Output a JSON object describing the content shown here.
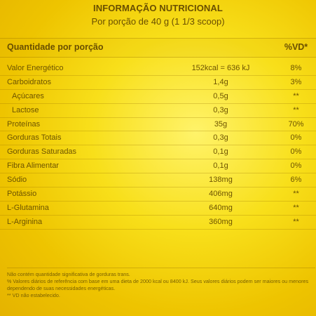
{
  "header": {
    "title": "INFORMAÇÃO NUTRICIONAL",
    "subtitle": "Por porção de 40 g (1 1/3 scoop)"
  },
  "table": {
    "column_label": "Quantidade por porção",
    "vd_label": "%VD*",
    "rows": [
      {
        "name": "Valor Energético",
        "amount": "152kcal = 636 kJ",
        "vd": "8%",
        "indent": false
      },
      {
        "name": "Carboidratos",
        "amount": "1,4g",
        "vd": "3%",
        "indent": false
      },
      {
        "name": "Açúcares",
        "amount": "0,5g",
        "vd": "**",
        "indent": true
      },
      {
        "name": "Lactose",
        "amount": "0,3g",
        "vd": "**",
        "indent": true
      },
      {
        "name": "Proteínas",
        "amount": "35g",
        "vd": "70%",
        "indent": false
      },
      {
        "name": "Gorduras Totais",
        "amount": "0,3g",
        "vd": "0%",
        "indent": false
      },
      {
        "name": "Gorduras Saturadas",
        "amount": "0,1g",
        "vd": "0%",
        "indent": false
      },
      {
        "name": "Fibra Alimentar",
        "amount": "0,1g",
        "vd": "0%",
        "indent": false
      },
      {
        "name": "Sódio",
        "amount": "138mg",
        "vd": "6%",
        "indent": false
      },
      {
        "name": "Potássio",
        "amount": "406mg",
        "vd": "**",
        "indent": false
      },
      {
        "name": "L-Glutamina",
        "amount": "640mg",
        "vd": "**",
        "indent": false
      },
      {
        "name": "L-Arginina",
        "amount": "360mg",
        "vd": "**",
        "indent": false
      }
    ]
  },
  "footer": {
    "lines": [
      "Não contém quantidade significativa de gorduras trans.",
      "% Valores diários de referência com base em uma dieta de 2000 kcal ou 8400 kJ. Seus valores diários podem ser maiores ou menores",
      "dependendo de suas necessidades energéticas.",
      "** VD não estabelecido."
    ]
  }
}
